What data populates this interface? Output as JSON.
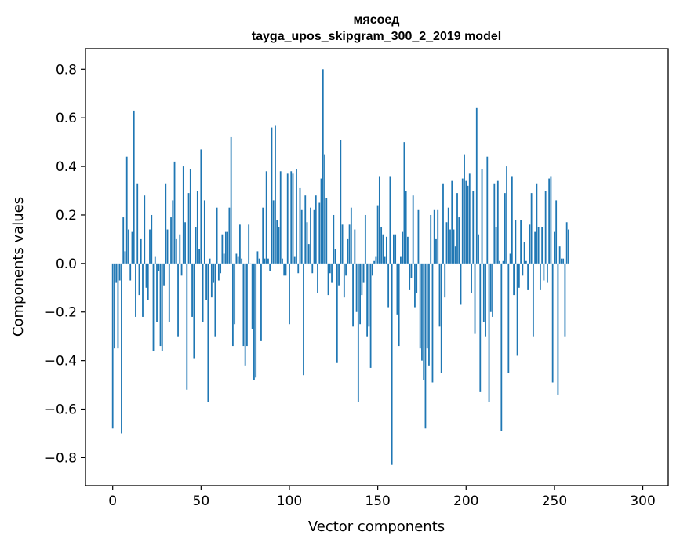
{
  "chart_data": {
    "type": "bar",
    "title": "мясоед",
    "subtitle": "tayga_upos_skipgram_300_2_2019 model",
    "xlabel": "Vector components",
    "ylabel": "Components values",
    "xlim": [
      -15.4,
      314.4
    ],
    "ylim": [
      -0.915,
      0.885
    ],
    "xticks": [
      0,
      50,
      100,
      150,
      200,
      250,
      300
    ],
    "xtick_labels": [
      "0",
      "50",
      "100",
      "150",
      "200",
      "250",
      "300"
    ],
    "yticks": [
      -0.8,
      -0.6,
      -0.4,
      -0.2,
      0.0,
      0.2,
      0.4,
      0.6,
      0.8
    ],
    "ytick_labels": [
      "−0.8",
      "−0.6",
      "−0.4",
      "−0.2",
      "0.0",
      "0.2",
      "0.4",
      "0.6",
      "0.8"
    ],
    "bar_color": "#1f77b4",
    "grid": false,
    "x_start": 0,
    "values": [
      -0.68,
      -0.35,
      -0.08,
      -0.35,
      -0.07,
      -0.7,
      0.19,
      0.05,
      0.44,
      0.14,
      -0.07,
      0.13,
      0.63,
      -0.22,
      0.33,
      -0.13,
      0.1,
      -0.22,
      0.28,
      -0.1,
      -0.15,
      0.14,
      0.2,
      -0.36,
      0.03,
      -0.24,
      -0.03,
      -0.34,
      -0.36,
      -0.09,
      0.33,
      0.14,
      -0.24,
      0.19,
      0.26,
      0.42,
      0.1,
      -0.3,
      0.12,
      -0.05,
      0.4,
      0.17,
      -0.52,
      0.29,
      0.39,
      -0.22,
      -0.39,
      0.15,
      0.3,
      0.06,
      0.47,
      -0.24,
      0.26,
      -0.15,
      -0.57,
      0.02,
      -0.14,
      -0.08,
      -0.3,
      0.23,
      -0.07,
      -0.04,
      0.12,
      0.04,
      0.13,
      0.13,
      0.23,
      0.52,
      -0.34,
      -0.25,
      0.04,
      0.03,
      0.16,
      0.02,
      -0.34,
      -0.42,
      -0.34,
      0.16,
      0.0,
      -0.27,
      -0.48,
      -0.47,
      0.05,
      0.02,
      -0.32,
      0.23,
      0.02,
      0.38,
      0.02,
      -0.03,
      0.56,
      0.26,
      0.57,
      0.18,
      0.15,
      0.38,
      0.02,
      -0.05,
      -0.05,
      0.37,
      -0.25,
      0.38,
      0.37,
      0.03,
      0.39,
      -0.04,
      0.31,
      0.22,
      -0.46,
      0.28,
      0.17,
      0.08,
      0.23,
      -0.04,
      0.22,
      0.28,
      -0.12,
      0.25,
      0.35,
      0.8,
      0.45,
      0.27,
      -0.13,
      -0.04,
      -0.08,
      0.2,
      0.06,
      -0.41,
      -0.09,
      0.51,
      0.16,
      -0.14,
      -0.05,
      0.1,
      0.16,
      0.23,
      -0.26,
      0.14,
      -0.2,
      -0.57,
      -0.25,
      -0.13,
      -0.08,
      0.2,
      -0.3,
      -0.26,
      -0.43,
      -0.05,
      0.01,
      0.03,
      0.24,
      0.36,
      0.15,
      0.12,
      0.03,
      0.11,
      -0.18,
      0.36,
      -0.83,
      0.12,
      0.12,
      -0.21,
      -0.34,
      0.03,
      0.13,
      0.5,
      0.3,
      0.11,
      -0.11,
      -0.06,
      0.28,
      -0.18,
      -0.12,
      0.22,
      -0.35,
      -0.4,
      -0.48,
      -0.68,
      -0.35,
      -0.42,
      0.2,
      -0.49,
      0.22,
      0.1,
      0.22,
      -0.26,
      -0.45,
      0.33,
      -0.14,
      0.17,
      0.23,
      0.14,
      0.34,
      0.14,
      0.07,
      0.29,
      0.19,
      -0.17,
      0.35,
      0.45,
      0.34,
      0.32,
      0.37,
      -0.12,
      0.3,
      -0.29,
      0.64,
      0.12,
      -0.53,
      0.39,
      -0.24,
      -0.3,
      0.44,
      -0.57,
      -0.2,
      -0.22,
      0.33,
      0.15,
      0.34,
      0.01,
      -0.69,
      0.01,
      0.29,
      0.4,
      -0.45,
      0.04,
      0.36,
      -0.13,
      0.18,
      -0.38,
      -0.1,
      0.18,
      -0.05,
      0.09,
      0.01,
      -0.11,
      0.16,
      0.29,
      -0.3,
      0.13,
      0.33,
      0.15,
      -0.11,
      0.15,
      -0.07,
      0.3,
      -0.08,
      0.35,
      0.36,
      -0.49,
      0.13,
      0.26,
      -0.54,
      0.07,
      0.02,
      0.02,
      -0.3,
      0.17,
      0.14
    ]
  }
}
